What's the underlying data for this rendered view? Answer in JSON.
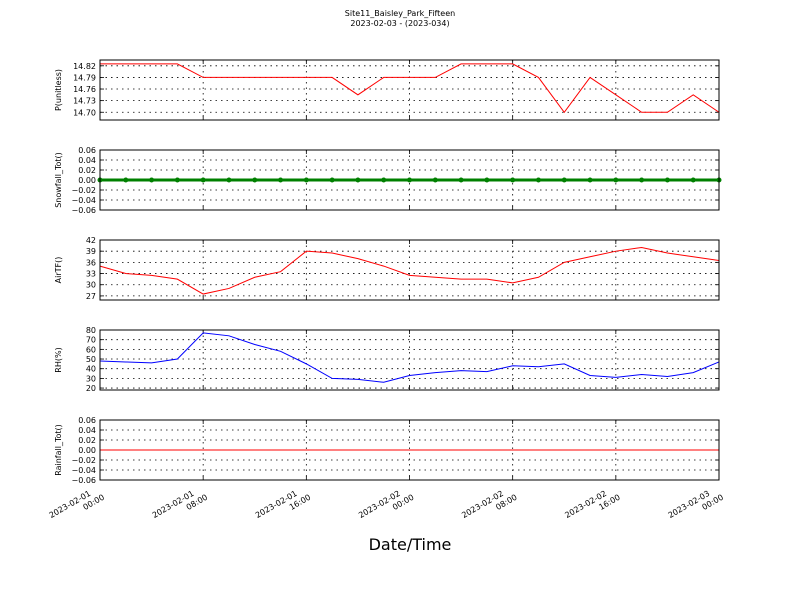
{
  "chart_data": [
    {
      "type": "line",
      "title": "Site11_Baisley_Park_Fifteen",
      "subtitle": "2023-02-03 - (2023-034)",
      "ylabel": "P(unitless)",
      "grid": true,
      "xlim": [
        "2023-02-01 00:00",
        "2023-02-03 00:00"
      ],
      "ylim": [
        14.68,
        14.835
      ],
      "yticks": [
        {
          "value": 14.7,
          "label": "14.70"
        },
        14.73,
        14.76,
        14.79,
        14.82
      ],
      "x": [
        "2023-02-01 00:00",
        "2023-02-01 02:00",
        "2023-02-01 04:00",
        "2023-02-01 06:00",
        "2023-02-01 08:00",
        "2023-02-01 10:00",
        "2023-02-01 12:00",
        "2023-02-01 14:00",
        "2023-02-01 16:00",
        "2023-02-01 18:00",
        "2023-02-01 20:00",
        "2023-02-01 22:00",
        "2023-02-02 00:00",
        "2023-02-02 02:00",
        "2023-02-02 04:00",
        "2023-02-02 06:00",
        "2023-02-02 08:00",
        "2023-02-02 10:00",
        "2023-02-02 12:00",
        "2023-02-02 14:00",
        "2023-02-02 16:00",
        "2023-02-02 18:00",
        "2023-02-02 20:00",
        "2023-02-02 22:00",
        "2023-02-03 00:00"
      ],
      "series": [
        {
          "color": "#ff0000",
          "values": [
            14.825,
            14.825,
            14.825,
            14.825,
            14.79,
            14.79,
            14.79,
            14.79,
            14.79,
            14.79,
            14.745,
            14.79,
            14.79,
            14.79,
            14.825,
            14.825,
            14.825,
            14.79,
            14.7,
            14.79,
            14.745,
            14.7,
            14.7,
            14.745,
            14.7
          ]
        }
      ]
    },
    {
      "type": "line",
      "ylabel": "Snowfall_Tot()",
      "grid": true,
      "xlim": [
        "2023-02-01 00:00",
        "2023-02-03 00:00"
      ],
      "ylim": [
        -0.06,
        0.06
      ],
      "yticks": [
        {
          "value": -0.06,
          "label": "−0.06"
        },
        {
          "value": -0.04,
          "label": "−0.04"
        },
        {
          "value": -0.02,
          "label": "−0.02"
        },
        {
          "value": 0,
          "label": "0.00"
        },
        0.02,
        0.04,
        0.06
      ],
      "x": [
        "2023-02-01 00:00",
        "2023-02-01 02:00",
        "2023-02-01 04:00",
        "2023-02-01 06:00",
        "2023-02-01 08:00",
        "2023-02-01 10:00",
        "2023-02-01 12:00",
        "2023-02-01 14:00",
        "2023-02-01 16:00",
        "2023-02-01 18:00",
        "2023-02-01 20:00",
        "2023-02-01 22:00",
        "2023-02-02 00:00",
        "2023-02-02 02:00",
        "2023-02-02 04:00",
        "2023-02-02 06:00",
        "2023-02-02 08:00",
        "2023-02-02 10:00",
        "2023-02-02 12:00",
        "2023-02-02 14:00",
        "2023-02-02 16:00",
        "2023-02-02 18:00",
        "2023-02-02 20:00",
        "2023-02-02 22:00",
        "2023-02-03 00:00"
      ],
      "series": [
        {
          "color": "#008000",
          "marker": "o",
          "values": [
            0,
            0,
            0,
            0,
            0,
            0,
            0,
            0,
            0,
            0,
            0,
            0,
            0,
            0,
            0,
            0,
            0,
            0,
            0,
            0,
            0,
            0,
            0,
            0,
            0
          ]
        }
      ]
    },
    {
      "type": "line",
      "ylabel": "AirTF()",
      "grid": true,
      "xlim": [
        "2023-02-01 00:00",
        "2023-02-03 00:00"
      ],
      "ylim": [
        25.9,
        42
      ],
      "yticks": [
        27,
        30,
        33,
        36,
        39,
        42
      ],
      "x": [
        "2023-02-01 00:00",
        "2023-02-01 02:00",
        "2023-02-01 04:00",
        "2023-02-01 06:00",
        "2023-02-01 08:00",
        "2023-02-01 10:00",
        "2023-02-01 12:00",
        "2023-02-01 14:00",
        "2023-02-01 16:00",
        "2023-02-01 18:00",
        "2023-02-01 20:00",
        "2023-02-01 22:00",
        "2023-02-02 00:00",
        "2023-02-02 02:00",
        "2023-02-02 04:00",
        "2023-02-02 06:00",
        "2023-02-02 08:00",
        "2023-02-02 10:00",
        "2023-02-02 12:00",
        "2023-02-02 14:00",
        "2023-02-02 16:00",
        "2023-02-02 18:00",
        "2023-02-02 20:00",
        "2023-02-02 22:00",
        "2023-02-03 00:00"
      ],
      "series": [
        {
          "color": "#ff0000",
          "values": [
            35,
            33,
            32.5,
            31.5,
            27.5,
            29,
            32,
            33.5,
            39,
            38.5,
            37,
            35,
            32.5,
            32,
            31.5,
            31.5,
            30.5,
            32,
            36,
            37.5,
            39,
            40,
            38.5,
            37.5,
            36.5
          ]
        }
      ]
    },
    {
      "type": "line",
      "ylabel": "RH(%)",
      "grid": true,
      "xlim": [
        "2023-02-01 00:00",
        "2023-02-03 00:00"
      ],
      "ylim": [
        18,
        80
      ],
      "yticks": [
        20,
        30,
        40,
        50,
        60,
        70,
        80
      ],
      "x": [
        "2023-02-01 00:00",
        "2023-02-01 02:00",
        "2023-02-01 04:00",
        "2023-02-01 06:00",
        "2023-02-01 08:00",
        "2023-02-01 10:00",
        "2023-02-01 12:00",
        "2023-02-01 14:00",
        "2023-02-01 16:00",
        "2023-02-01 18:00",
        "2023-02-01 20:00",
        "2023-02-01 22:00",
        "2023-02-02 00:00",
        "2023-02-02 02:00",
        "2023-02-02 04:00",
        "2023-02-02 06:00",
        "2023-02-02 08:00",
        "2023-02-02 10:00",
        "2023-02-02 12:00",
        "2023-02-02 14:00",
        "2023-02-02 16:00",
        "2023-02-02 18:00",
        "2023-02-02 20:00",
        "2023-02-02 22:00",
        "2023-02-03 00:00"
      ],
      "series": [
        {
          "color": "#0000ff",
          "values": [
            48,
            47,
            46,
            50,
            77,
            74,
            65,
            58,
            45,
            30,
            29,
            26,
            33,
            36,
            38,
            37,
            43,
            42,
            45,
            33,
            31,
            34,
            32,
            36,
            47
          ]
        }
      ]
    },
    {
      "type": "line",
      "ylabel": "Rainfall_Tot()",
      "xlabel": "Date/Time",
      "grid": true,
      "xlim": [
        "2023-02-01 00:00",
        "2023-02-03 00:00"
      ],
      "xticks": [
        "2023-02-01 00:00",
        "2023-02-01 08:00",
        "2023-02-01 16:00",
        "2023-02-02 00:00",
        "2023-02-02 08:00",
        "2023-02-02 16:00",
        "2023-02-03 00:00"
      ],
      "ylim": [
        -0.06,
        0.06
      ],
      "yticks": [
        {
          "value": -0.06,
          "label": "−0.06"
        },
        {
          "value": -0.04,
          "label": "−0.04"
        },
        {
          "value": -0.02,
          "label": "−0.02"
        },
        {
          "value": 0,
          "label": "0.00"
        },
        0.02,
        0.04,
        0.06
      ],
      "x": [
        "2023-02-01 00:00",
        "2023-02-01 02:00",
        "2023-02-01 04:00",
        "2023-02-01 06:00",
        "2023-02-01 08:00",
        "2023-02-01 10:00",
        "2023-02-01 12:00",
        "2023-02-01 14:00",
        "2023-02-01 16:00",
        "2023-02-01 18:00",
        "2023-02-01 20:00",
        "2023-02-01 22:00",
        "2023-02-02 00:00",
        "2023-02-02 02:00",
        "2023-02-02 04:00",
        "2023-02-02 06:00",
        "2023-02-02 08:00",
        "2023-02-02 10:00",
        "2023-02-02 12:00",
        "2023-02-02 14:00",
        "2023-02-02 16:00",
        "2023-02-02 18:00",
        "2023-02-02 20:00",
        "2023-02-02 22:00",
        "2023-02-03 00:00"
      ],
      "series": [
        {
          "color": "#ff0000",
          "values": [
            0,
            0,
            0,
            0,
            0,
            0,
            0,
            0,
            0,
            0,
            0,
            0,
            0,
            0,
            0,
            0,
            0,
            0,
            0,
            0,
            0,
            0,
            0,
            0,
            0
          ]
        }
      ]
    }
  ]
}
